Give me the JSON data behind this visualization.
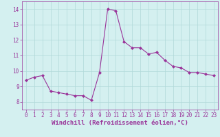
{
  "x": [
    0,
    1,
    2,
    3,
    4,
    5,
    6,
    7,
    8,
    9,
    10,
    11,
    12,
    13,
    14,
    15,
    16,
    17,
    18,
    19,
    20,
    21,
    22,
    23
  ],
  "y": [
    9.4,
    9.6,
    9.7,
    8.7,
    8.6,
    8.5,
    8.4,
    8.4,
    8.1,
    9.9,
    14.0,
    13.9,
    11.9,
    11.5,
    11.5,
    11.1,
    11.2,
    10.7,
    10.3,
    10.2,
    9.9,
    9.9,
    9.8,
    9.7
  ],
  "line_color": "#993399",
  "marker": "D",
  "marker_size": 2,
  "bg_color": "#d4f0f0",
  "grid_color": "#b0d8d8",
  "xlabel": "Windchill (Refroidissement éolien,°C)",
  "xlabel_color": "#993399",
  "tick_color": "#993399",
  "ylim": [
    7.5,
    14.5
  ],
  "xlim": [
    -0.5,
    23.5
  ],
  "yticks": [
    8,
    9,
    10,
    11,
    12,
    13,
    14
  ],
  "xticks": [
    0,
    1,
    2,
    3,
    4,
    5,
    6,
    7,
    8,
    9,
    10,
    11,
    12,
    13,
    14,
    15,
    16,
    17,
    18,
    19,
    20,
    21,
    22,
    23
  ],
  "tick_fontsize": 5.5,
  "xlabel_fontsize": 6.5,
  "linewidth": 0.8
}
